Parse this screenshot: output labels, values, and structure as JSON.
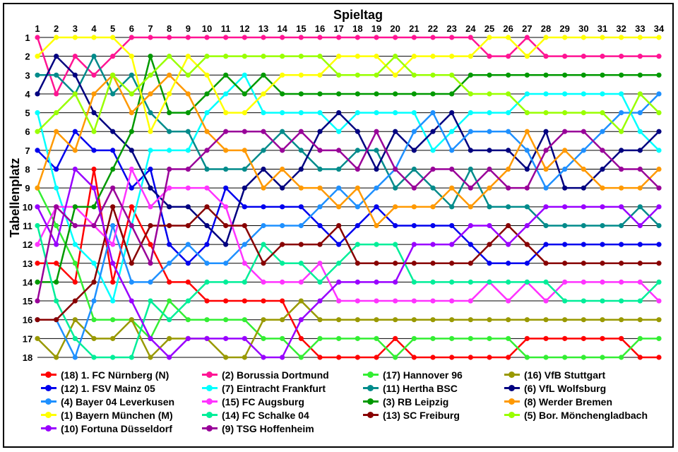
{
  "chart_data": {
    "type": "line",
    "xlabel": "Spieltag",
    "ylabel": "Tabellenplatz",
    "x": [
      1,
      2,
      3,
      4,
      5,
      6,
      7,
      8,
      9,
      10,
      11,
      12,
      13,
      14,
      15,
      16,
      17,
      18,
      19,
      20,
      21,
      22,
      23,
      24,
      25,
      26,
      27,
      28,
      29,
      30,
      31,
      32,
      33,
      34
    ],
    "xlim": [
      1,
      34
    ],
    "ylim": [
      1,
      18
    ],
    "y_inverted": true,
    "y_ticks": [
      1,
      2,
      3,
      4,
      5,
      6,
      7,
      8,
      9,
      10,
      11,
      12,
      13,
      14,
      15,
      16,
      17,
      18
    ],
    "grid": "horizontal",
    "legend_position": "bottom",
    "series": [
      {
        "name": "(18) 1. FC Nürnberg (N)",
        "color": "#ff0000",
        "values": [
          13,
          13,
          14,
          8,
          14,
          10,
          12,
          14,
          14,
          15,
          15,
          15,
          15,
          15,
          17,
          18,
          18,
          18,
          18,
          17,
          18,
          18,
          18,
          18,
          18,
          18,
          17,
          17,
          17,
          17,
          17,
          17,
          18,
          18
        ]
      },
      {
        "name": "(2) Borussia Dortmund",
        "color": "#ff1493",
        "values": [
          1,
          4,
          2,
          3,
          2,
          1,
          1,
          1,
          1,
          1,
          1,
          1,
          1,
          1,
          1,
          1,
          1,
          1,
          1,
          1,
          1,
          1,
          1,
          1,
          2,
          2,
          1,
          2,
          2,
          2,
          2,
          2,
          2,
          2
        ]
      },
      {
        "name": "(17) Hannover 96",
        "color": "#33ee33",
        "values": [
          9,
          11,
          13,
          16,
          16,
          16,
          17,
          15,
          16,
          16,
          16,
          16,
          17,
          17,
          18,
          17,
          17,
          17,
          17,
          18,
          17,
          17,
          17,
          17,
          17,
          17,
          18,
          18,
          18,
          18,
          18,
          18,
          17,
          17
        ]
      },
      {
        "name": "(16) VfB Stuttgart",
        "color": "#999900",
        "values": [
          17,
          18,
          16,
          17,
          17,
          16,
          18,
          17,
          17,
          17,
          18,
          18,
          16,
          16,
          15,
          16,
          16,
          16,
          16,
          16,
          16,
          16,
          16,
          16,
          16,
          16,
          16,
          16,
          16,
          16,
          16,
          16,
          16,
          16
        ]
      },
      {
        "name": "(12) 1. FSV Mainz 05",
        "color": "#0000ee",
        "values": [
          7,
          8,
          6,
          7,
          7,
          9,
          8,
          12,
          13,
          12,
          9,
          10,
          10,
          10,
          10,
          11,
          12,
          11,
          10,
          11,
          11,
          11,
          11,
          12,
          13,
          13,
          13,
          12,
          12,
          12,
          12,
          12,
          12,
          12
        ]
      },
      {
        "name": "(7) Eintracht Frankfurt",
        "color": "#00ffff",
        "values": [
          5,
          9,
          12,
          13,
          15,
          11,
          7,
          7,
          7,
          5,
          4,
          3,
          5,
          5,
          5,
          5,
          6,
          5,
          5,
          5,
          5,
          7,
          6,
          5,
          5,
          5,
          4,
          4,
          4,
          4,
          4,
          4,
          6,
          7
        ]
      },
      {
        "name": "(11) Hertha BSC",
        "color": "#008b8b",
        "values": [
          3,
          3,
          4,
          2,
          4,
          3,
          5,
          6,
          6,
          8,
          8,
          8,
          7,
          6,
          7,
          8,
          8,
          7,
          7,
          9,
          8,
          9,
          10,
          8,
          10,
          10,
          10,
          11,
          11,
          11,
          11,
          11,
          10,
          11
        ]
      },
      {
        "name": "(6) VfL Wolfsburg",
        "color": "#000080",
        "values": [
          4,
          2,
          3,
          5,
          6,
          7,
          9,
          10,
          10,
          11,
          12,
          9,
          8,
          9,
          8,
          6,
          5,
          6,
          8,
          6,
          7,
          6,
          5,
          7,
          7,
          7,
          8,
          6,
          9,
          9,
          8,
          7,
          7,
          6
        ]
      },
      {
        "name": "(4) Bayer 04 Leverkusen",
        "color": "#1e90ff",
        "values": [
          16,
          16,
          18,
          15,
          11,
          14,
          14,
          13,
          12,
          13,
          13,
          12,
          11,
          11,
          11,
          10,
          9,
          10,
          9,
          8,
          6,
          5,
          7,
          6,
          6,
          6,
          7,
          9,
          8,
          7,
          6,
          5,
          5,
          4
        ]
      },
      {
        "name": "(15) FC Augsburg",
        "color": "#ff33ff",
        "values": [
          12,
          10,
          10,
          11,
          12,
          8,
          10,
          9,
          9,
          9,
          10,
          13,
          14,
          14,
          14,
          13,
          15,
          15,
          15,
          15,
          15,
          15,
          15,
          15,
          14,
          15,
          14,
          15,
          14,
          14,
          14,
          14,
          14,
          15
        ]
      },
      {
        "name": "(3) RB Leipzig",
        "color": "#009900",
        "values": [
          14,
          14,
          10,
          10,
          8,
          6,
          2,
          5,
          5,
          4,
          3,
          4,
          3,
          4,
          4,
          4,
          4,
          4,
          4,
          4,
          4,
          4,
          4,
          3,
          3,
          3,
          3,
          3,
          3,
          3,
          3,
          3,
          3,
          3
        ]
      },
      {
        "name": "(8) Werder Bremen",
        "color": "#ff9900",
        "values": [
          9,
          6,
          7,
          4,
          3,
          5,
          4,
          3,
          4,
          6,
          7,
          7,
          9,
          8,
          9,
          9,
          10,
          9,
          11,
          10,
          10,
          10,
          9,
          10,
          9,
          8,
          6,
          8,
          7,
          8,
          9,
          9,
          9,
          8
        ]
      },
      {
        "name": "(1) Bayern München (M)",
        "color": "#ffff00",
        "values": [
          2,
          1,
          1,
          1,
          1,
          2,
          6,
          4,
          2,
          3,
          5,
          5,
          4,
          3,
          3,
          3,
          2,
          2,
          2,
          3,
          2,
          2,
          2,
          2,
          1,
          1,
          2,
          1,
          1,
          1,
          1,
          1,
          1,
          1
        ]
      },
      {
        "name": "(14) FC Schalke 04",
        "color": "#00ee99",
        "values": [
          11,
          15,
          17,
          18,
          18,
          18,
          15,
          16,
          15,
          14,
          14,
          14,
          12,
          13,
          13,
          14,
          13,
          12,
          12,
          12,
          14,
          14,
          14,
          14,
          14,
          14,
          14,
          14,
          15,
          15,
          15,
          15,
          15,
          14
        ]
      },
      {
        "name": "(13) SC Freiburg",
        "color": "#880000",
        "values": [
          16,
          16,
          15,
          14,
          10,
          13,
          11,
          11,
          11,
          10,
          11,
          11,
          13,
          12,
          12,
          12,
          11,
          13,
          13,
          13,
          13,
          13,
          13,
          13,
          12,
          11,
          12,
          13,
          13,
          13,
          13,
          13,
          13,
          13
        ]
      },
      {
        "name": "(5) Bor. Mönchengladbach",
        "color": "#99ff00",
        "values": [
          6,
          5,
          4,
          6,
          3,
          4,
          3,
          2,
          3,
          2,
          2,
          2,
          2,
          2,
          2,
          2,
          3,
          3,
          3,
          2,
          3,
          3,
          3,
          4,
          4,
          4,
          5,
          5,
          5,
          5,
          5,
          6,
          4,
          5
        ]
      },
      {
        "name": "(10) Fortuna Düsseldorf",
        "color": "#9900ff",
        "values": [
          10,
          12,
          8,
          9,
          13,
          15,
          17,
          18,
          17,
          17,
          17,
          17,
          18,
          18,
          16,
          15,
          14,
          14,
          14,
          14,
          12,
          12,
          12,
          11,
          11,
          12,
          11,
          10,
          10,
          10,
          10,
          10,
          11,
          10
        ]
      },
      {
        "name": "(9) TSG Hoffenheim",
        "color": "#990099",
        "values": [
          15,
          10,
          11,
          11,
          9,
          11,
          13,
          8,
          8,
          7,
          6,
          6,
          6,
          7,
          6,
          7,
          7,
          8,
          6,
          8,
          9,
          8,
          8,
          9,
          8,
          9,
          9,
          7,
          6,
          6,
          7,
          8,
          8,
          9
        ]
      }
    ]
  }
}
